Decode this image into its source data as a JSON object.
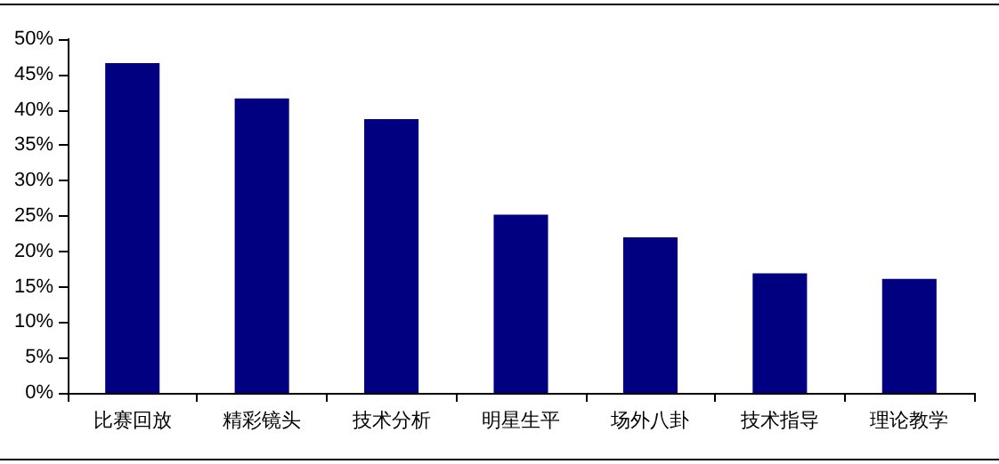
{
  "chart_data": {
    "type": "bar",
    "categories": [
      "比赛回放",
      "精彩镜头",
      "技术分析",
      "明星生平",
      "场外八卦",
      "技术指导",
      "理论教学"
    ],
    "values": [
      0.466,
      0.416,
      0.387,
      0.252,
      0.22,
      0.169,
      0.161
    ],
    "color": "#000080",
    "ylim": [
      0,
      0.5
    ],
    "yticks": [
      {
        "value": 0,
        "label": "0%"
      },
      {
        "value": 0.05,
        "label": "5%"
      },
      {
        "value": 0.1,
        "label": "10%"
      },
      {
        "value": 0.15,
        "label": "15%"
      },
      {
        "value": 0.2,
        "label": "20%"
      },
      {
        "value": 0.25,
        "label": "25%"
      },
      {
        "value": 0.3,
        "label": "30%"
      },
      {
        "value": 0.35,
        "label": "35%"
      },
      {
        "value": 0.4,
        "label": "40%"
      },
      {
        "value": 0.45,
        "label": "45%"
      },
      {
        "value": 0.5,
        "label": "50%"
      }
    ],
    "grid": false
  }
}
